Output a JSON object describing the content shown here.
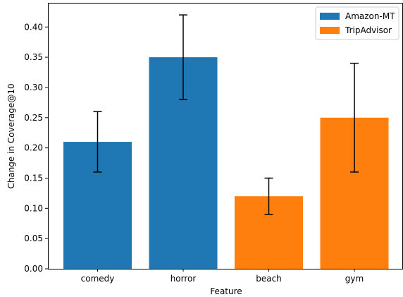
{
  "chart_data": {
    "type": "bar",
    "title": "",
    "xlabel": "Feature",
    "ylabel": "Change in Coverage@10",
    "categories": [
      "comedy",
      "horror",
      "beach",
      "gym"
    ],
    "values": [
      0.21,
      0.35,
      0.12,
      0.25
    ],
    "error_low": [
      0.16,
      0.28,
      0.09,
      0.16
    ],
    "error_high": [
      0.26,
      0.42,
      0.15,
      0.34
    ],
    "series_of_bar": [
      "Amazon-MT",
      "Amazon-MT",
      "TripAdvisor",
      "TripAdvisor"
    ],
    "series": [
      {
        "name": "Amazon-MT",
        "color": "#1f77b4"
      },
      {
        "name": "TripAdvisor",
        "color": "#ff7f0e"
      }
    ],
    "ylim": [
      0,
      0.44
    ],
    "yticks": [
      "0.00",
      "0.05",
      "0.10",
      "0.15",
      "0.20",
      "0.25",
      "0.30",
      "0.35",
      "0.40"
    ],
    "legend_position": "top-right",
    "grid": false
  }
}
